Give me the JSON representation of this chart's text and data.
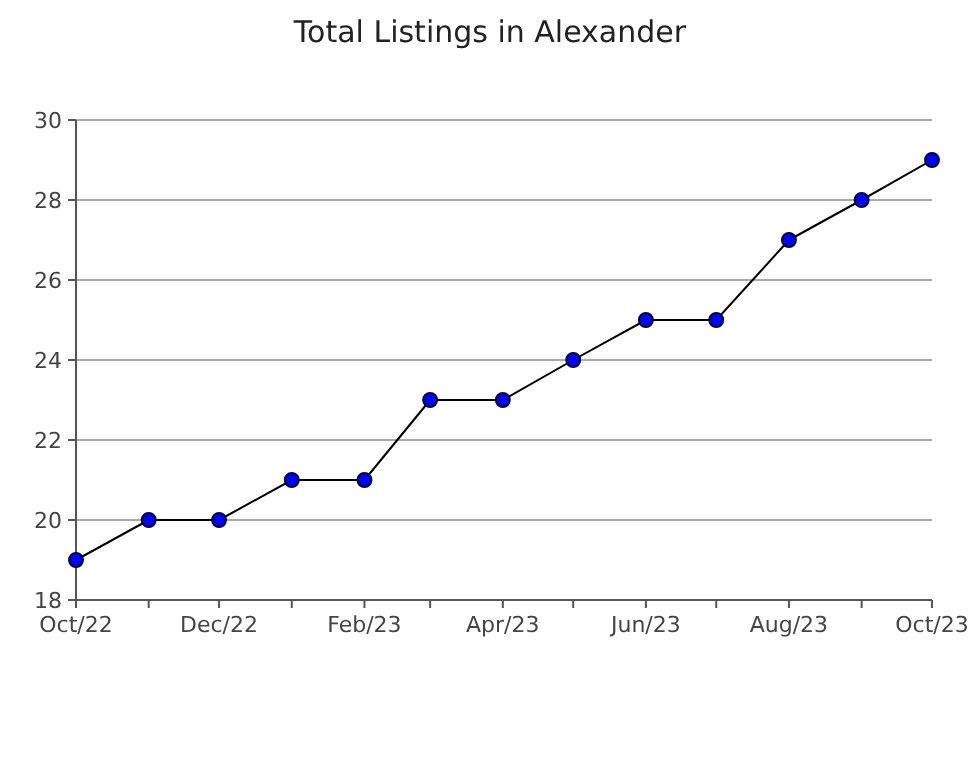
{
  "chart_data": {
    "type": "line",
    "title": "Total Listings in Alexander",
    "x": [
      "2022-10",
      "2022-11",
      "2022-12",
      "2023-01",
      "2023-02",
      "2023-03",
      "2023-04",
      "2023-05",
      "2023-06",
      "2023-07",
      "2023-08",
      "2023-09",
      "2023-10"
    ],
    "series": [
      {
        "color": "#0000ff",
        "values": [
          19,
          20,
          20,
          21,
          21,
          23,
          23,
          24,
          25,
          25,
          27,
          28,
          29
        ]
      }
    ],
    "xlim": [
      "2022-10",
      "2023-10"
    ],
    "xticks": [
      {
        "value": "2022-10",
        "label": "Oct/22"
      },
      {
        "value": "2022-11",
        "label": null
      },
      {
        "value": "2022-12",
        "label": "Dec/22"
      },
      {
        "value": "2023-01",
        "label": null
      },
      {
        "value": "2023-02",
        "label": "Feb/23"
      },
      {
        "value": "2023-03",
        "label": null
      },
      {
        "value": "2023-04",
        "label": "Apr/23"
      },
      {
        "value": "2023-05",
        "label": null
      },
      {
        "value": "2023-06",
        "label": "Jun/23"
      },
      {
        "value": "2023-07",
        "label": null
      },
      {
        "value": "2023-08",
        "label": "Aug/23"
      },
      {
        "value": "2023-09",
        "label": null
      },
      {
        "value": "2023-10",
        "label": "Oct/23"
      }
    ],
    "ylim": [
      18,
      30
    ],
    "yticks": [
      18,
      20,
      22,
      24,
      26,
      28,
      30
    ],
    "grid": "y",
    "marker": "circle",
    "line_style": "solid"
  }
}
